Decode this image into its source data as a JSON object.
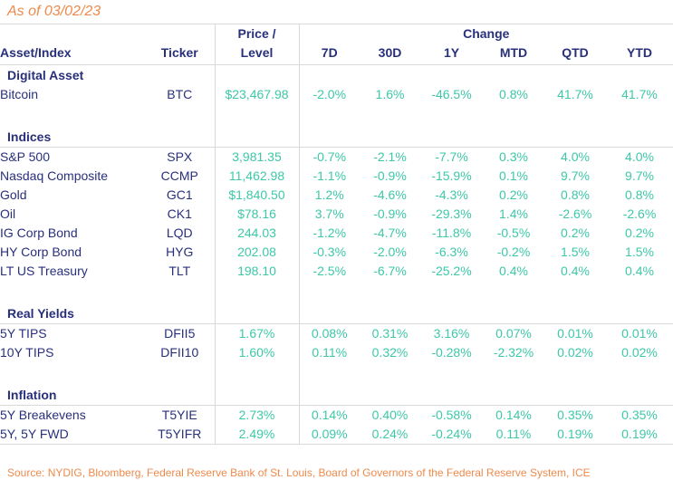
{
  "title": {
    "as_of": "As of 03/02/23"
  },
  "colors": {
    "navy_text": "#28307C",
    "value_teal": "#3DC8A8",
    "accent_orange": "#EE8A4C",
    "grid_gray": "#D9D9D9"
  },
  "chart_data": {
    "type": "table",
    "as_of_label": "As of 03/02/23",
    "header": {
      "asset": "Asset/Index",
      "ticker": "Ticker",
      "price_line1": "Price /",
      "price_line2": "Level",
      "change_group": "Change",
      "change_cols": [
        "7D",
        "30D",
        "1Y",
        "MTD",
        "QTD",
        "YTD"
      ]
    },
    "sections": [
      {
        "label": "Digital Asset",
        "rows": [
          {
            "asset": "Bitcoin",
            "ticker": "BTC",
            "price": "$23,467.98",
            "changes": [
              "-2.0%",
              "1.6%",
              "-46.5%",
              "0.8%",
              "41.7%",
              "41.7%"
            ]
          }
        ]
      },
      {
        "label": "Indices",
        "rows": [
          {
            "asset": "S&P 500",
            "ticker": "SPX",
            "price": "3,981.35",
            "changes": [
              "-0.7%",
              "-2.1%",
              "-7.7%",
              "0.3%",
              "4.0%",
              "4.0%"
            ]
          },
          {
            "asset": "Nasdaq Composite",
            "ticker": "CCMP",
            "price": "11,462.98",
            "changes": [
              "-1.1%",
              "-0.9%",
              "-15.9%",
              "0.1%",
              "9.7%",
              "9.7%"
            ]
          },
          {
            "asset": "Gold",
            "ticker": "GC1",
            "price": "$1,840.50",
            "changes": [
              "1.2%",
              "-4.6%",
              "-4.3%",
              "0.2%",
              "0.8%",
              "0.8%"
            ]
          },
          {
            "asset": "Oil",
            "ticker": "CK1",
            "price": "$78.16",
            "changes": [
              "3.7%",
              "-0.9%",
              "-29.3%",
              "1.4%",
              "-2.6%",
              "-2.6%"
            ]
          },
          {
            "asset": "IG Corp Bond",
            "ticker": "LQD",
            "price": "244.03",
            "changes": [
              "-1.2%",
              "-4.7%",
              "-11.8%",
              "-0.5%",
              "0.2%",
              "0.2%"
            ]
          },
          {
            "asset": "HY Corp Bond",
            "ticker": "HYG",
            "price": "202.08",
            "changes": [
              "-0.3%",
              "-2.0%",
              "-6.3%",
              "-0.2%",
              "1.5%",
              "1.5%"
            ]
          },
          {
            "asset": "LT US Treasury",
            "ticker": "TLT",
            "price": "198.10",
            "changes": [
              "-2.5%",
              "-6.7%",
              "-25.2%",
              "0.4%",
              "0.4%",
              "0.4%"
            ]
          }
        ]
      },
      {
        "label": "Real Yields",
        "rows": [
          {
            "asset": "5Y TIPS",
            "ticker": "DFII5",
            "price": "1.67%",
            "changes": [
              "0.08%",
              "0.31%",
              "3.16%",
              "0.07%",
              "0.01%",
              "0.01%"
            ]
          },
          {
            "asset": "10Y TIPS",
            "ticker": "DFII10",
            "price": "1.60%",
            "changes": [
              "0.11%",
              "0.32%",
              "-0.28%",
              "-2.32%",
              "0.02%",
              "0.02%"
            ]
          }
        ]
      },
      {
        "label": "Inflation",
        "rows": [
          {
            "asset": "5Y Breakevens",
            "ticker": "T5YIE",
            "price": "2.73%",
            "changes": [
              "0.14%",
              "0.40%",
              "-0.58%",
              "0.14%",
              "0.35%",
              "0.35%"
            ]
          },
          {
            "asset": "5Y, 5Y FWD",
            "ticker": "T5YIFR",
            "price": "2.49%",
            "changes": [
              "0.09%",
              "0.24%",
              "-0.24%",
              "0.11%",
              "0.19%",
              "0.19%"
            ]
          }
        ]
      }
    ],
    "source": "Source: NYDIG, Bloomberg, Federal Reserve Bank of St. Louis, Board of Governors of the Federal Reserve System, ICE"
  }
}
